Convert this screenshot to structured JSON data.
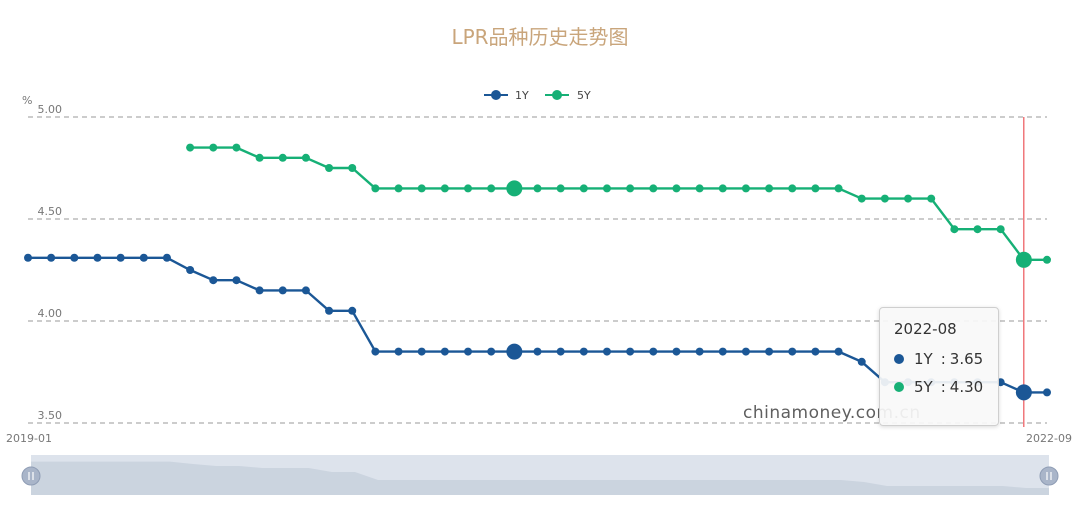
{
  "title": "LPR品种历史走势图",
  "colors": {
    "title": "#C9A57B",
    "series_1y": "#1B5796",
    "series_5y": "#16B076",
    "grid": "#9a9a9a",
    "cursor": "#E8333A",
    "zoom_bg": "#DDE3EC"
  },
  "watermark": "chinamoney.com.cn",
  "x_start_label": "2019-01",
  "x_end_label": "2022-09",
  "tooltip": {
    "date": "2022-08",
    "rows": [
      {
        "name": "1Y",
        "sep": ":",
        "value": "3.65"
      },
      {
        "name": "5Y",
        "sep": ":",
        "value": "4.30"
      }
    ]
  },
  "chart_data": {
    "type": "line",
    "title": "LPR品种历史走势图",
    "ylabel": "%",
    "ylim": [
      3.5,
      5.0
    ],
    "yticks": [
      "5.00",
      "4.50",
      "4.00",
      "3.50"
    ],
    "grid": true,
    "legend": "top-center",
    "x": [
      "2019-01",
      "2019-02",
      "2019-03",
      "2019-04",
      "2019-05",
      "2019-06",
      "2019-07",
      "2019-08",
      "2019-09",
      "2019-10",
      "2019-11",
      "2019-12",
      "2020-01",
      "2020-02",
      "2020-03",
      "2020-04",
      "2020-05",
      "2020-06",
      "2020-07",
      "2020-08",
      "2020-09",
      "2020-10",
      "2020-11",
      "2020-12",
      "2021-01",
      "2021-02",
      "2021-03",
      "2021-04",
      "2021-05",
      "2021-06",
      "2021-07",
      "2021-08",
      "2021-09",
      "2021-10",
      "2021-11",
      "2021-12",
      "2022-01",
      "2022-02",
      "2022-03",
      "2022-04",
      "2022-05",
      "2022-06",
      "2022-07",
      "2022-08",
      "2022-09"
    ],
    "series": [
      {
        "name": "1Y",
        "values": [
          4.31,
          4.31,
          4.31,
          4.31,
          4.31,
          4.31,
          4.31,
          4.25,
          4.2,
          4.2,
          4.15,
          4.15,
          4.15,
          4.05,
          4.05,
          3.85,
          3.85,
          3.85,
          3.85,
          3.85,
          3.85,
          3.85,
          3.85,
          3.85,
          3.85,
          3.85,
          3.85,
          3.85,
          3.85,
          3.85,
          3.85,
          3.85,
          3.85,
          3.85,
          3.85,
          3.85,
          3.8,
          3.7,
          3.7,
          3.7,
          3.7,
          3.7,
          3.7,
          3.65,
          3.65
        ]
      },
      {
        "name": "5Y",
        "values": [
          null,
          null,
          null,
          null,
          null,
          null,
          null,
          4.85,
          4.85,
          4.85,
          4.8,
          4.8,
          4.8,
          4.75,
          4.75,
          4.65,
          4.65,
          4.65,
          4.65,
          4.65,
          4.65,
          4.65,
          4.65,
          4.65,
          4.65,
          4.65,
          4.65,
          4.65,
          4.65,
          4.65,
          4.65,
          4.65,
          4.65,
          4.65,
          4.65,
          4.65,
          4.6,
          4.6,
          4.6,
          4.6,
          4.45,
          4.45,
          4.45,
          4.3,
          4.3
        ]
      }
    ],
    "highlight_x": [
      "2020-10",
      "2022-08"
    ]
  }
}
